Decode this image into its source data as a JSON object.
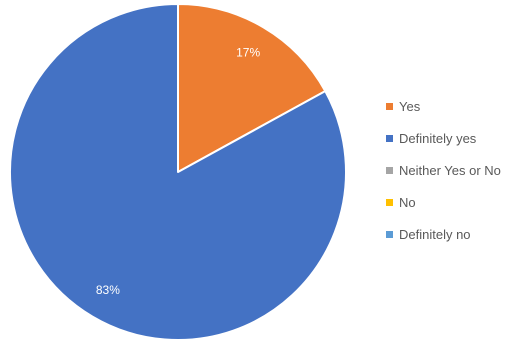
{
  "chart_data": {
    "type": "pie",
    "categories": [
      "Yes",
      "Definitely yes",
      "Neither Yes or No",
      "No",
      "Definitely no"
    ],
    "values": [
      17,
      83,
      0,
      0,
      0
    ],
    "data_labels": [
      "17%",
      "83%",
      "",
      "",
      ""
    ],
    "colors": [
      "#ed7d31",
      "#4472c4",
      "#a5a5a5",
      "#ffc000",
      "#5b9bd5"
    ],
    "title": "",
    "legend_position": "right",
    "start_angle_degrees": 0,
    "direction": "clockwise"
  },
  "legend": {
    "items": [
      {
        "label": "Yes",
        "color": "#ed7d31"
      },
      {
        "label": "Definitely yes",
        "color": "#4472c4"
      },
      {
        "label": "Neither Yes or No",
        "color": "#a5a5a5"
      },
      {
        "label": "No",
        "color": "#ffc000"
      },
      {
        "label": "Definitely no",
        "color": "#5b9bd5"
      }
    ]
  }
}
